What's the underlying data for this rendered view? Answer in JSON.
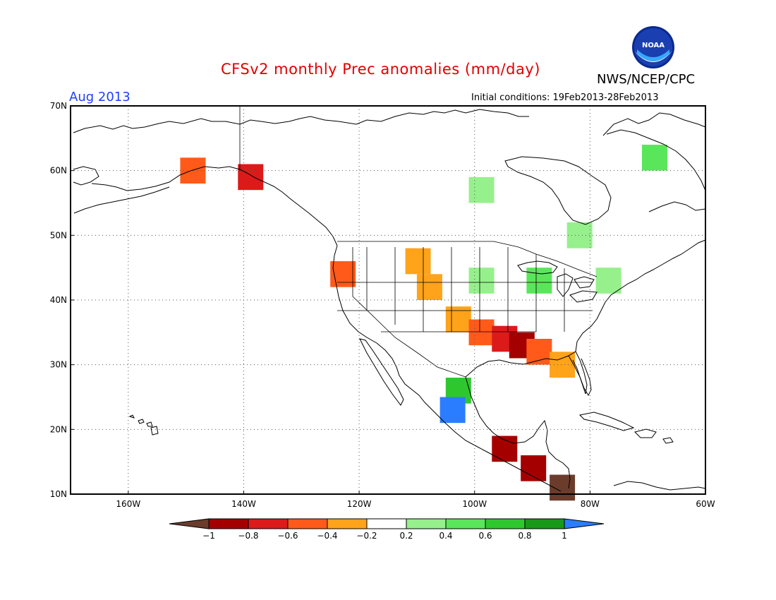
{
  "title": "CFSv2 monthly Prec anomalies (mm/day)",
  "organization": "NWS/NCEP/CPC",
  "logo_text": "NOAA",
  "forecast_month": "Aug 2013",
  "initial_conditions": "Initial conditions: 19Feb2013-28Feb2013",
  "map": {
    "lon_range": [
      -170,
      -60
    ],
    "lat_range": [
      10,
      70
    ],
    "lat_ticks": [
      "10N",
      "20N",
      "30N",
      "40N",
      "50N",
      "60N",
      "70N"
    ],
    "lon_ticks": [
      "160W",
      "140W",
      "120W",
      "100W",
      "80W",
      "60W"
    ],
    "grid": true,
    "colorbar": {
      "labels": [
        "−1",
        "−0.8",
        "−0.6",
        "−0.4",
        "−0.2",
        "0.2",
        "0.4",
        "0.6",
        "0.8",
        "1"
      ],
      "colors": [
        "#6b3c2c",
        "#a50000",
        "#dd1a1a",
        "#ff5a1a",
        "#ffa31a",
        "#ffffff",
        "#96f08c",
        "#5ae65a",
        "#2ec82e",
        "#189a18",
        "#2a7dff"
      ]
    },
    "anomaly_cells": [
      {
        "lon": -111,
        "lat": 47,
        "v": -0.3
      },
      {
        "lon": -109,
        "lat": 43,
        "v": -0.3
      },
      {
        "lon": -104,
        "lat": 38,
        "v": -0.3
      },
      {
        "lon": -100,
        "lat": 36,
        "v": -0.5
      },
      {
        "lon": -96,
        "lat": 35,
        "v": -0.7
      },
      {
        "lon": -93,
        "lat": 34,
        "v": -0.9
      },
      {
        "lon": -90,
        "lat": 33,
        "v": -0.5
      },
      {
        "lon": -86,
        "lat": 31,
        "v": -0.3
      },
      {
        "lon": -104,
        "lat": 27,
        "v": 0.7
      },
      {
        "lon": -105,
        "lat": 24,
        "v": 1.1
      },
      {
        "lon": -96,
        "lat": 18,
        "v": -0.8
      },
      {
        "lon": -91,
        "lat": 15,
        "v": -0.9
      },
      {
        "lon": -86,
        "lat": 12,
        "v": -1.1
      },
      {
        "lon": -100,
        "lat": 44,
        "v": 0.3
      },
      {
        "lon": -90,
        "lat": 44,
        "v": 0.5
      },
      {
        "lon": -78,
        "lat": 44,
        "v": 0.3
      },
      {
        "lon": -100,
        "lat": 58,
        "v": 0.3
      },
      {
        "lon": -83,
        "lat": 51,
        "v": 0.3
      },
      {
        "lon": -70,
        "lat": 63,
        "v": 0.5
      },
      {
        "lon": -124,
        "lat": 45,
        "v": -0.5
      },
      {
        "lon": -150,
        "lat": 61,
        "v": -0.5
      },
      {
        "lon": -140,
        "lat": 60,
        "v": -0.7
      }
    ]
  }
}
